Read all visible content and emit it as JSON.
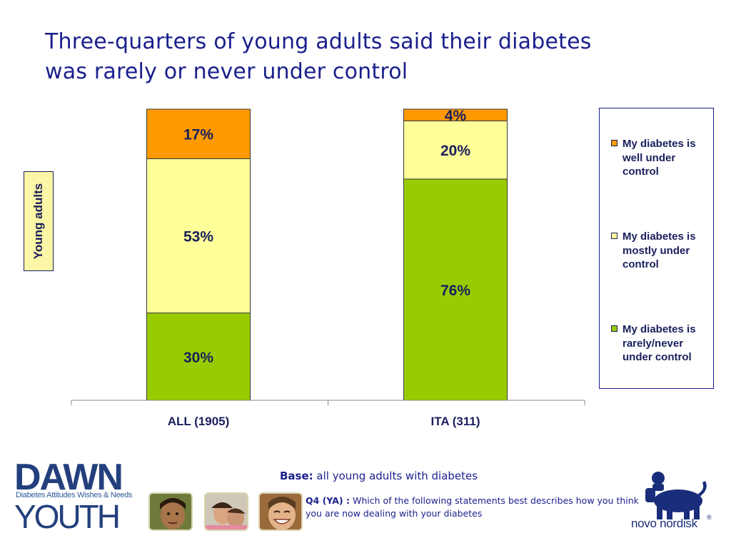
{
  "title": {
    "line1": "Three-quarters of young adults said their diabetes",
    "line2": "was rarely or never under control"
  },
  "y_axis_box_label": "Young adults",
  "chart_data": {
    "type": "bar",
    "stacked": true,
    "percent_stacked": true,
    "categories": [
      "ALL (1905)",
      "ITA (311)"
    ],
    "series": [
      {
        "name": "My diabetes is rarely/never under control",
        "values": [
          30,
          76
        ],
        "labels": [
          "30%",
          "76%"
        ],
        "color": "#99cc00"
      },
      {
        "name": "My diabetes is mostly under control",
        "values": [
          53,
          20
        ],
        "labels": [
          "53%",
          "20%"
        ],
        "color": "#ffff99"
      },
      {
        "name": "My diabetes is well under control",
        "values": [
          17,
          4
        ],
        "labels": [
          "17%",
          "4%"
        ],
        "color": "#ff9900"
      }
    ],
    "ylim": [
      0,
      100
    ],
    "grid": false,
    "legend_position": "right",
    "legend_order": [
      "My diabetes is well under control",
      "My diabetes is mostly under control",
      "My diabetes is rarely/never under control"
    ]
  },
  "legend": [
    {
      "lines": [
        "My diabetes is",
        "well under",
        "control"
      ],
      "color": "#ff9900"
    },
    {
      "lines": [
        "My diabetes is",
        "mostly under",
        "control"
      ],
      "color": "#ffff99"
    },
    {
      "lines": [
        "My diabetes is",
        "rarely/never",
        "under control"
      ],
      "color": "#99cc00"
    }
  ],
  "footer": {
    "base_label": "Base:",
    "base_text": " all young adults with diabetes",
    "question_label": "Q4 (YA) :",
    "question_text": " Which of the following statements best describes how you think you are now dealing with your diabetes"
  },
  "branding": {
    "dawn": "DAWN",
    "dawn_sub": "Diabetes Attitudes Wishes & Needs",
    "youth": "YOUTH",
    "company": "novo nordisk",
    "registered": "®"
  },
  "colors": {
    "title": "#1a1f8c",
    "text": "#1a1f5c",
    "axis_box": "#fbf7a6"
  }
}
